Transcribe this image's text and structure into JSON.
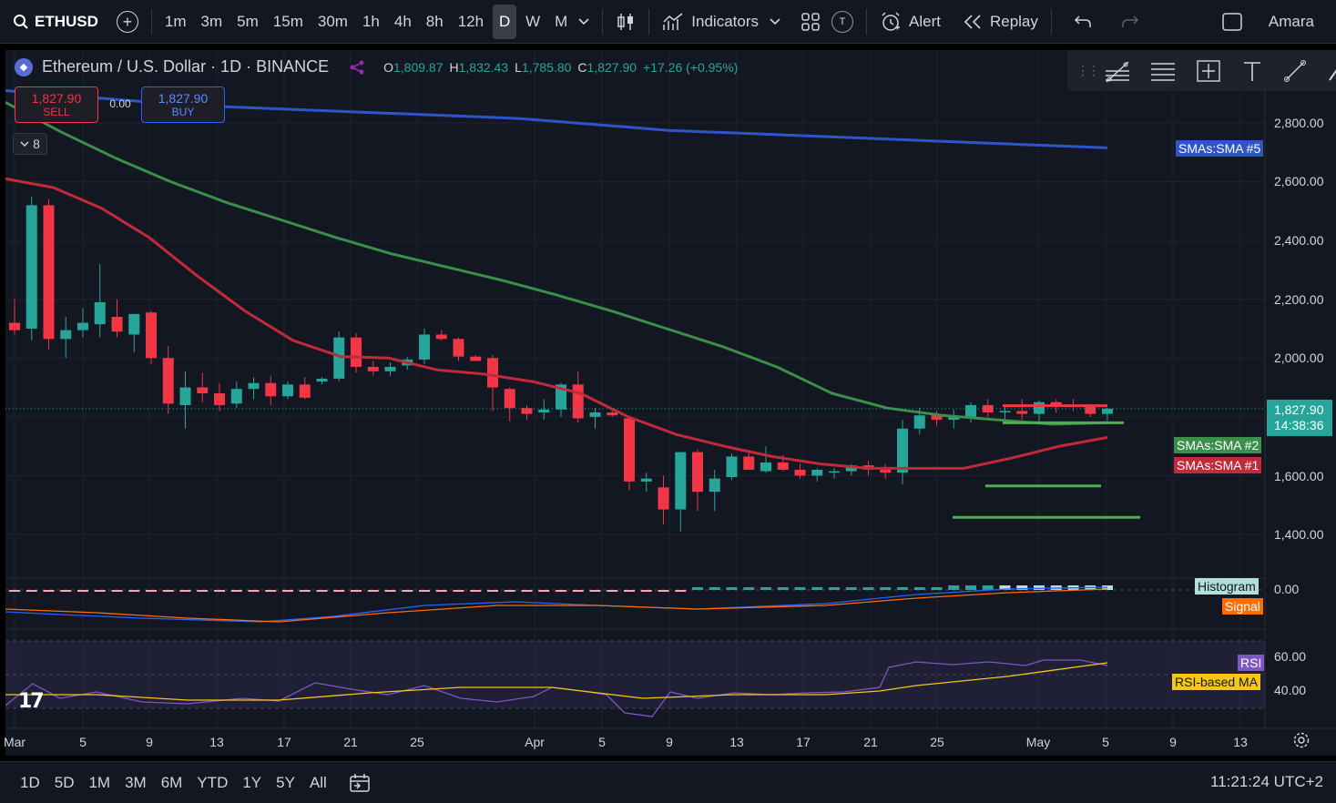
{
  "toolbar": {
    "symbol": "ETHUSD",
    "intervals": [
      "1m",
      "3m",
      "5m",
      "15m",
      "30m",
      "1h",
      "4h",
      "8h",
      "12h",
      "D",
      "W",
      "M"
    ],
    "active_interval": "D",
    "indicators_label": "Indicators",
    "alert_label": "Alert",
    "replay_label": "Replay",
    "user_label": "Amara",
    "badge_t": "T"
  },
  "legend": {
    "title": "Ethereum / U.S. Dollar · 1D · BINANCE",
    "o_label": "O",
    "o_value": "1,809.87",
    "h_label": "H",
    "h_value": "1,832.43",
    "l_label": "L",
    "l_value": "1,785.80",
    "c_label": "C",
    "c_value": "1,827.90",
    "change": "+17.26 (+0.95%)"
  },
  "trade": {
    "sell_price": "1,827.90",
    "sell_label": "SELL",
    "spread": "0.00",
    "buy_price": "1,827.90",
    "buy_label": "BUY"
  },
  "collapse_count": "8",
  "price_labels": [
    "2,800.00",
    "2,600.00",
    "2,400.00",
    "2,200.00",
    "2,000.00",
    "1,600.00",
    "1,400.00"
  ],
  "current_price": {
    "price": "1,827.90",
    "countdown": "14:38:36"
  },
  "ma_tags": {
    "sma5": "SMAs:SMA #5",
    "sma2": "SMAs:SMA #2",
    "sma1": "SMAs:SMA #1"
  },
  "macd": {
    "value": "0.00",
    "histogram_label": "Histogram",
    "signal_label": "Signal"
  },
  "rsi": {
    "label": "RSI",
    "ma_label": "RSI-based MA",
    "level_60": "60.00",
    "level_40": "40.00"
  },
  "time_labels": [
    "Mar",
    "5",
    "9",
    "13",
    "17",
    "21",
    "25",
    "Apr",
    "5",
    "9",
    "13",
    "17",
    "21",
    "25",
    "May",
    "5",
    "9",
    "13"
  ],
  "ranges": [
    "1D",
    "5D",
    "1M",
    "3M",
    "6M",
    "YTD",
    "1Y",
    "5Y",
    "All"
  ],
  "clock": "11:21:24 UTC+2",
  "colors": {
    "up": "#26a69a",
    "down": "#f23645",
    "sma5": "#2f54c9",
    "sma2": "#3a8f4a",
    "sma1": "#c22a3a",
    "macd": "#2962ff",
    "signal": "#ff6d00",
    "rsi": "#7e57c2",
    "rsi_ma": "#f5c518"
  },
  "chart_data": {
    "type": "candlestick",
    "symbol": "ETHUSD",
    "interval": "1D",
    "y_range": [
      1350,
      2950
    ],
    "candles": [
      {
        "o": 2120,
        "h": 2200,
        "l": 2080,
        "c": 2095
      },
      {
        "o": 2100,
        "h": 2550,
        "l": 2060,
        "c": 2520
      },
      {
        "o": 2520,
        "h": 2540,
        "l": 2030,
        "c": 2065
      },
      {
        "o": 2065,
        "h": 2140,
        "l": 2000,
        "c": 2095
      },
      {
        "o": 2095,
        "h": 2170,
        "l": 2070,
        "c": 2120
      },
      {
        "o": 2115,
        "h": 2320,
        "l": 2070,
        "c": 2190
      },
      {
        "o": 2140,
        "h": 2200,
        "l": 2070,
        "c": 2090
      },
      {
        "o": 2080,
        "h": 2150,
        "l": 2020,
        "c": 2150
      },
      {
        "o": 2155,
        "h": 2160,
        "l": 1980,
        "c": 2000
      },
      {
        "o": 2000,
        "h": 2040,
        "l": 1810,
        "c": 1845
      },
      {
        "o": 1840,
        "h": 1955,
        "l": 1760,
        "c": 1900
      },
      {
        "o": 1900,
        "h": 1950,
        "l": 1850,
        "c": 1880
      },
      {
        "o": 1880,
        "h": 1915,
        "l": 1820,
        "c": 1840
      },
      {
        "o": 1845,
        "h": 1920,
        "l": 1830,
        "c": 1895
      },
      {
        "o": 1895,
        "h": 1935,
        "l": 1860,
        "c": 1915
      },
      {
        "o": 1915,
        "h": 1940,
        "l": 1840,
        "c": 1870
      },
      {
        "o": 1870,
        "h": 1920,
        "l": 1860,
        "c": 1910
      },
      {
        "o": 1910,
        "h": 1935,
        "l": 1860,
        "c": 1865
      },
      {
        "o": 1920,
        "h": 1935,
        "l": 1910,
        "c": 1930
      },
      {
        "o": 1930,
        "h": 2090,
        "l": 1920,
        "c": 2070
      },
      {
        "o": 2070,
        "h": 2085,
        "l": 1950,
        "c": 1970
      },
      {
        "o": 1970,
        "h": 1990,
        "l": 1940,
        "c": 1955
      },
      {
        "o": 1955,
        "h": 1985,
        "l": 1940,
        "c": 1970
      },
      {
        "o": 1975,
        "h": 2005,
        "l": 1960,
        "c": 1995
      },
      {
        "o": 1995,
        "h": 2100,
        "l": 1980,
        "c": 2080
      },
      {
        "o": 2080,
        "h": 2095,
        "l": 2060,
        "c": 2065
      },
      {
        "o": 2065,
        "h": 2070,
        "l": 1990,
        "c": 2005
      },
      {
        "o": 2005,
        "h": 2010,
        "l": 1995,
        "c": 1990
      },
      {
        "o": 2000,
        "h": 2010,
        "l": 1820,
        "c": 1900
      },
      {
        "o": 1895,
        "h": 1900,
        "l": 1785,
        "c": 1830
      },
      {
        "o": 1830,
        "h": 1840,
        "l": 1790,
        "c": 1810
      },
      {
        "o": 1815,
        "h": 1860,
        "l": 1790,
        "c": 1825
      },
      {
        "o": 1825,
        "h": 1915,
        "l": 1800,
        "c": 1910
      },
      {
        "o": 1910,
        "h": 1955,
        "l": 1780,
        "c": 1795
      },
      {
        "o": 1800,
        "h": 1830,
        "l": 1760,
        "c": 1815
      },
      {
        "o": 1815,
        "h": 1830,
        "l": 1800,
        "c": 1805
      },
      {
        "o": 1795,
        "h": 1800,
        "l": 1550,
        "c": 1580
      },
      {
        "o": 1580,
        "h": 1610,
        "l": 1545,
        "c": 1590
      },
      {
        "o": 1560,
        "h": 1600,
        "l": 1435,
        "c": 1485
      },
      {
        "o": 1485,
        "h": 1680,
        "l": 1410,
        "c": 1680
      },
      {
        "o": 1680,
        "h": 1690,
        "l": 1480,
        "c": 1545
      },
      {
        "o": 1545,
        "h": 1620,
        "l": 1480,
        "c": 1590
      },
      {
        "o": 1595,
        "h": 1675,
        "l": 1585,
        "c": 1665
      },
      {
        "o": 1665,
        "h": 1680,
        "l": 1620,
        "c": 1620
      },
      {
        "o": 1615,
        "h": 1700,
        "l": 1610,
        "c": 1645
      },
      {
        "o": 1645,
        "h": 1670,
        "l": 1615,
        "c": 1620
      },
      {
        "o": 1620,
        "h": 1640,
        "l": 1590,
        "c": 1600
      },
      {
        "o": 1600,
        "h": 1625,
        "l": 1580,
        "c": 1620
      },
      {
        "o": 1610,
        "h": 1625,
        "l": 1590,
        "c": 1615
      },
      {
        "o": 1615,
        "h": 1640,
        "l": 1600,
        "c": 1635
      },
      {
        "o": 1635,
        "h": 1650,
        "l": 1600,
        "c": 1620
      },
      {
        "o": 1620,
        "h": 1640,
        "l": 1590,
        "c": 1610
      },
      {
        "o": 1610,
        "h": 1790,
        "l": 1570,
        "c": 1760
      },
      {
        "o": 1760,
        "h": 1830,
        "l": 1740,
        "c": 1805
      },
      {
        "o": 1805,
        "h": 1820,
        "l": 1770,
        "c": 1790
      },
      {
        "o": 1790,
        "h": 1825,
        "l": 1760,
        "c": 1800
      },
      {
        "o": 1800,
        "h": 1850,
        "l": 1780,
        "c": 1840
      },
      {
        "o": 1840,
        "h": 1860,
        "l": 1800,
        "c": 1815
      },
      {
        "o": 1815,
        "h": 1835,
        "l": 1780,
        "c": 1820
      },
      {
        "o": 1820,
        "h": 1860,
        "l": 1790,
        "c": 1810
      },
      {
        "o": 1810,
        "h": 1855,
        "l": 1780,
        "c": 1850
      },
      {
        "o": 1850,
        "h": 1860,
        "l": 1815,
        "c": 1840
      },
      {
        "o": 1840,
        "h": 1860,
        "l": 1820,
        "c": 1835
      },
      {
        "o": 1835,
        "h": 1845,
        "l": 1800,
        "c": 1810
      },
      {
        "o": 1810,
        "h": 1832,
        "l": 1786,
        "c": 1828
      }
    ],
    "sma5": [
      2910,
      2900,
      2890,
      2880,
      2870,
      2860,
      2855,
      2850,
      2845,
      2840,
      2835,
      2830,
      2825,
      2820,
      2815,
      2805,
      2795,
      2785,
      2775,
      2770,
      2765,
      2760,
      2755,
      2750,
      2745,
      2740,
      2735,
      2730,
      2725,
      2720,
      2715
    ],
    "sma2": [
      2870,
      2770,
      2680,
      2600,
      2530,
      2470,
      2410,
      2355,
      2310,
      2265,
      2215,
      2160,
      2100,
      2040,
      1970,
      1880,
      1830,
      1805,
      1790,
      1775,
      1780
    ],
    "sma1": [
      2610,
      2580,
      2510,
      2410,
      2280,
      2160,
      2060,
      2005,
      2000,
      1960,
      1945,
      1920,
      1880,
      1800,
      1740,
      1700,
      1665,
      1640,
      1625,
      1625,
      1625,
      1660,
      1700,
      1730
    ],
    "horizontal_lines": [
      {
        "color": "#f23645",
        "price": 1838
      },
      {
        "color": "#4caf50",
        "price": 1780
      },
      {
        "color": "#4caf50",
        "price": 1565
      },
      {
        "color": "#4caf50",
        "price": 1458
      }
    ]
  }
}
